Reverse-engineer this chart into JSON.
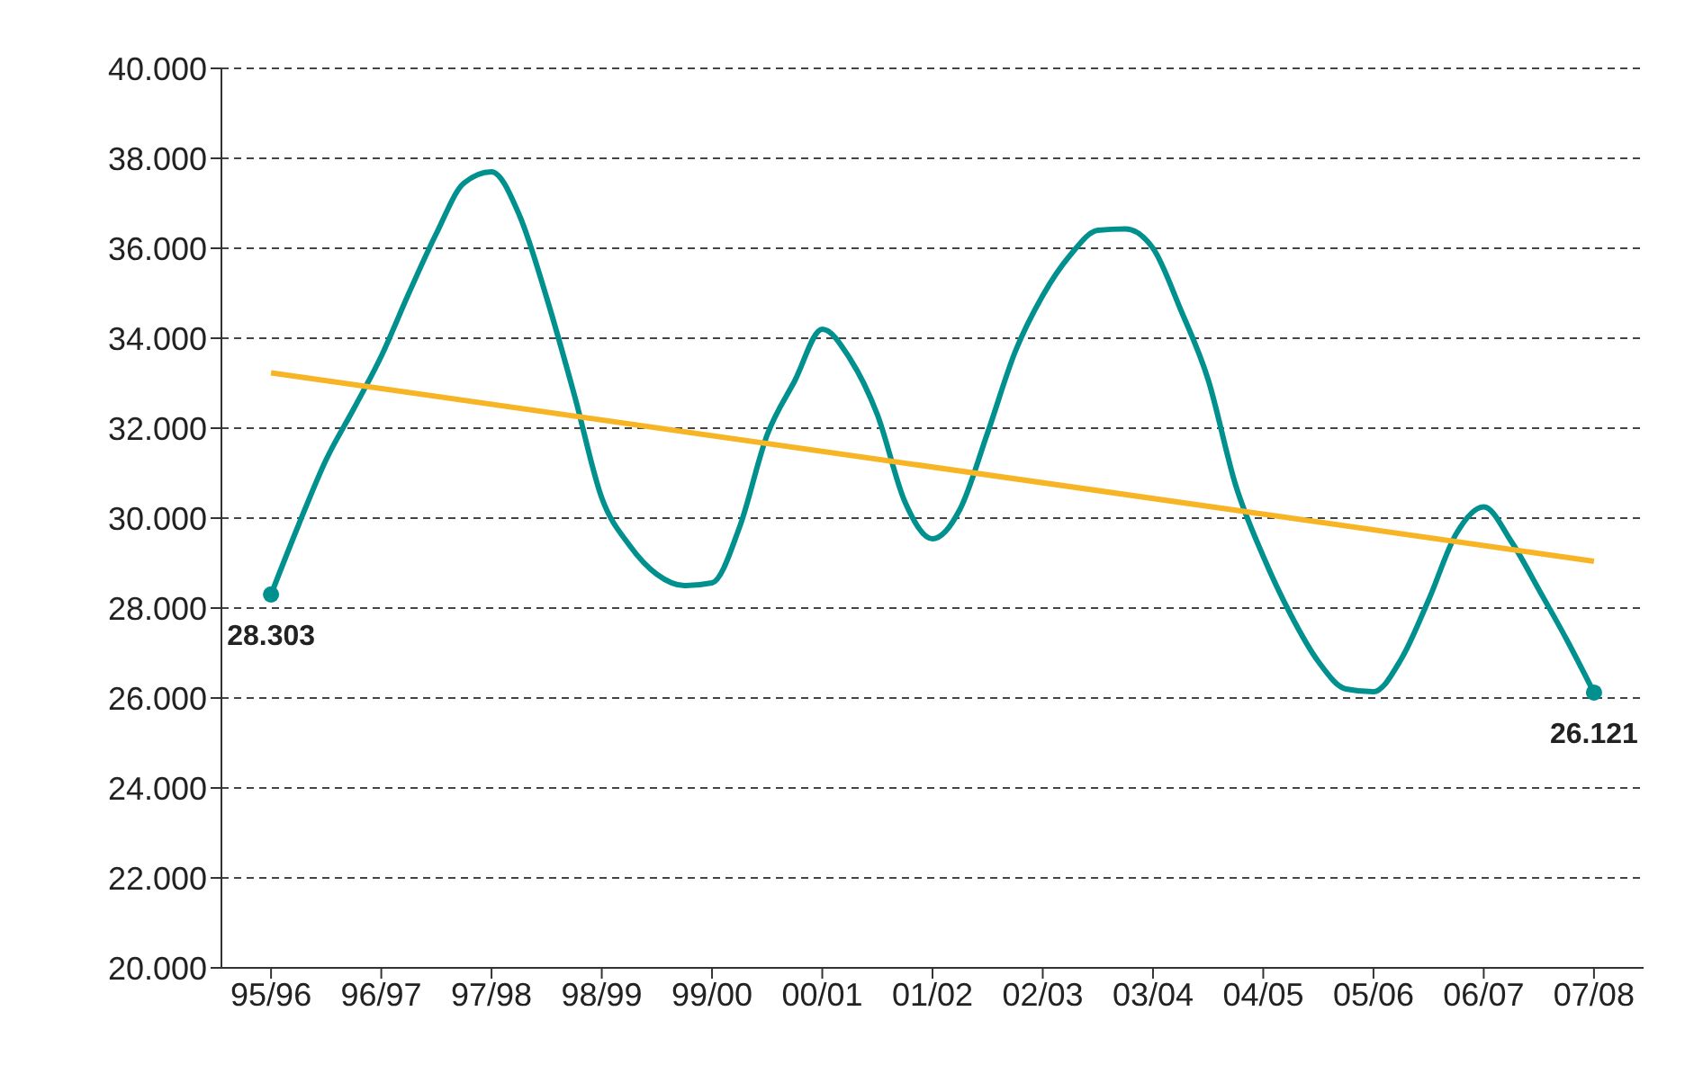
{
  "chart_data": {
    "type": "line",
    "grid": "y",
    "legend": false,
    "line_style": "solid",
    "categories": [
      "95/96",
      null,
      null,
      null,
      "96/97",
      null,
      null,
      null,
      "97/98",
      null,
      null,
      null,
      "98/99",
      null,
      null,
      null,
      "99/00",
      null,
      null,
      null,
      "00/01",
      null,
      null,
      null,
      "01/02",
      null,
      null,
      null,
      "02/03",
      null,
      null,
      null,
      "03/04",
      null,
      null,
      null,
      "04/05",
      null,
      null,
      null,
      "05/06",
      null,
      null,
      null,
      "06/07",
      null,
      null,
      null,
      "07/08"
    ],
    "ylim": [
      20000,
      40000
    ],
    "yticks": [
      {
        "value": 20000,
        "label": "20.000"
      },
      {
        "value": 22000,
        "label": "22.000"
      },
      {
        "value": 24000,
        "label": "24.000"
      },
      {
        "value": 26000,
        "label": "26.000"
      },
      {
        "value": 28000,
        "label": "28.000"
      },
      {
        "value": 30000,
        "label": "30.000"
      },
      {
        "value": 32000,
        "label": "32.000"
      },
      {
        "value": 34000,
        "label": "34.000"
      },
      {
        "value": 36000,
        "label": "36.000"
      },
      {
        "value": 38000,
        "label": "38.000"
      },
      {
        "value": 40000,
        "label": "40.000"
      }
    ],
    "series": [
      {
        "color": "#00918f",
        "marker": "none",
        "values": [
          28300,
          29850,
          31300,
          32430,
          33600,
          35000,
          36330,
          37450,
          37700,
          36750,
          34900,
          32750,
          30450,
          29400,
          28750,
          28500,
          28560,
          29800,
          31850,
          33050,
          34200,
          33550,
          32300,
          30360,
          29540,
          30200,
          31900,
          33700,
          34950,
          35850,
          36400,
          36430,
          36000,
          34640,
          33080,
          30730,
          29150,
          27850,
          26810,
          26200,
          26140,
          26860,
          28180,
          29650,
          30250,
          29480,
          28410,
          27310,
          26120
        ]
      },
      {
        "type": "line",
        "color": "#f7b526",
        "marker": "none",
        "x": [
          "95/96",
          "07/08"
        ],
        "values": [
          33230,
          29040
        ]
      },
      {
        "type": "scatter",
        "color": "#00918f",
        "marker": "circle",
        "x": [
          "95/96",
          "07/08"
        ],
        "values": [
          28303,
          26121
        ],
        "value_labels": [
          "28.303",
          "26.121"
        ]
      }
    ]
  }
}
